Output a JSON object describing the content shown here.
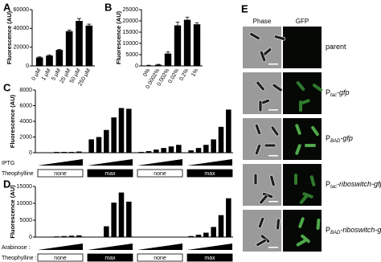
{
  "chart_data": [
    {
      "type": "bar",
      "panel": "A",
      "y_label": "Fluorescence (AU)",
      "categories": [
        "0 μM",
        "1 μM",
        "5 μM",
        "25 μM",
        "50 μM",
        "250 μM"
      ],
      "values": [
        9000,
        11000,
        17000,
        37000,
        48000,
        43000
      ],
      "errors": [
        600,
        800,
        700,
        1200,
        2500,
        1500
      ],
      "color": "#000000",
      "ylim": [
        0,
        60000
      ],
      "yticks": [
        0,
        20000,
        40000,
        60000
      ]
    },
    {
      "type": "bar",
      "panel": "B",
      "y_label": "Fluorescence (AU)",
      "categories": [
        "0%",
        "0.0002%",
        "0.002%",
        "0.02%",
        "0.2%",
        "1%"
      ],
      "values": [
        200,
        500,
        5500,
        18000,
        20500,
        18500
      ],
      "errors": [
        100,
        200,
        800,
        1500,
        1200,
        700
      ],
      "color": "#000000",
      "ylim": [
        0,
        25000
      ],
      "yticks": [
        0,
        5000,
        10000,
        15000,
        20000,
        25000
      ]
    },
    {
      "type": "bar",
      "panel": "C",
      "y_label": "Fluorescence (AU)",
      "categories": [
        null,
        null,
        null,
        null,
        null,
        null,
        null,
        null,
        null,
        null,
        null,
        null,
        null,
        null,
        null,
        null,
        null,
        null,
        null,
        null,
        null,
        null,
        null,
        null
      ],
      "values": [
        50,
        50,
        100,
        100,
        100,
        150,
        1700,
        2000,
        2900,
        4500,
        5700,
        5600,
        100,
        200,
        400,
        600,
        800,
        1000,
        300,
        600,
        1000,
        1700,
        3300,
        5500
      ],
      "color": "#000000",
      "ylim": [
        0,
        8000
      ],
      "yticks": [
        0,
        2000,
        4000,
        6000,
        8000
      ],
      "treatments": [
        {
          "label": "IPTG"
        },
        {
          "label": "Theophylline",
          "boxes": [
            "none",
            "max",
            "none",
            "max"
          ]
        }
      ]
    },
    {
      "type": "bar",
      "panel": "D",
      "y_label": "Fluorescence (AU)",
      "categories": [
        null,
        null,
        null,
        null,
        null,
        null,
        null,
        null,
        null,
        null,
        null,
        null,
        null,
        null,
        null,
        null,
        null,
        null,
        null,
        null,
        null,
        null,
        null,
        null
      ],
      "values": [
        100,
        100,
        200,
        300,
        400,
        500,
        50,
        100,
        3200,
        10200,
        13200,
        10500,
        0,
        0,
        0,
        50,
        100,
        100,
        300,
        700,
        1300,
        3000,
        6500,
        11500
      ],
      "color": "#000000",
      "ylim": [
        0,
        15000
      ],
      "yticks": [
        0,
        5000,
        10000,
        15000
      ],
      "treatments": [
        {
          "label": "Arabinose :"
        },
        {
          "label": "Theophylline :",
          "boxes": [
            "none",
            "max",
            "none",
            "max"
          ]
        }
      ]
    }
  ],
  "panel_e": {
    "label": "E",
    "columns": [
      "Phase",
      "GFP"
    ],
    "rows": [
      {
        "prefix": "parent"
      },
      {
        "prefix": "P",
        "sub": "tac",
        "suffix": "-gfp"
      },
      {
        "prefix": "P",
        "sub": "BAD",
        "suffix": "-gfp"
      },
      {
        "prefix": "P",
        "sub": "tac",
        "suffix": "-riboswitch-gfp"
      },
      {
        "prefix": "P",
        "sub": "BAD",
        "suffix": "-riboswitch-gfp"
      }
    ]
  }
}
